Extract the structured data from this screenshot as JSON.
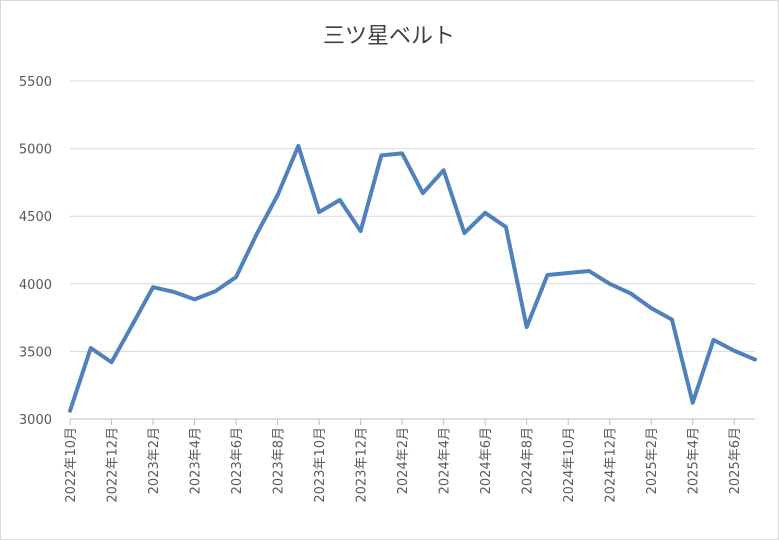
{
  "chart_data": {
    "type": "line",
    "title": "三ツ星ベルト",
    "categories": [
      "2022年10月",
      null,
      "2022年12月",
      null,
      "2023年2月",
      null,
      "2023年4月",
      null,
      "2023年6月",
      null,
      "2023年8月",
      null,
      "2023年10月",
      null,
      "2023年12月",
      null,
      "2024年2月",
      null,
      "2024年4月",
      null,
      "2024年6月",
      null,
      "2024年8月",
      null,
      "2024年10月",
      null,
      "2024年12月",
      null,
      "2025年2月",
      null,
      "2025年4月",
      null,
      "2025年6月",
      null
    ],
    "values": [
      3060,
      3525,
      3420,
      3695,
      3975,
      3940,
      3885,
      3945,
      4050,
      4370,
      4655,
      5020,
      4530,
      4620,
      4390,
      4950,
      4965,
      4670,
      4840,
      4375,
      4525,
      4420,
      3680,
      4065,
      4080,
      4095,
      4000,
      3930,
      3820,
      3735,
      3120,
      3585,
      3505,
      3440
    ],
    "color": "#4f81bd",
    "ylim": [
      3000,
      5500
    ],
    "yticks": [
      3000,
      3500,
      4000,
      4500,
      5000,
      5500
    ],
    "grid": true
  }
}
